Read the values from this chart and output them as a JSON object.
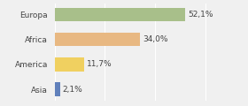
{
  "categories": [
    "Europa",
    "Africa",
    "America",
    "Asia"
  ],
  "values": [
    52.1,
    34.0,
    11.7,
    2.1
  ],
  "labels": [
    "52,1%",
    "34,0%",
    "11,7%",
    "2,1%"
  ],
  "bar_colors": [
    "#a8bf8a",
    "#e8b882",
    "#f0d060",
    "#6080bb"
  ],
  "background_color": "#f0f0f0",
  "xlim": [
    0,
    75
  ],
  "bar_height": 0.55,
  "label_fontsize": 6.5,
  "tick_fontsize": 6.5,
  "figsize": [
    2.8,
    1.2
  ],
  "dpi": 100
}
